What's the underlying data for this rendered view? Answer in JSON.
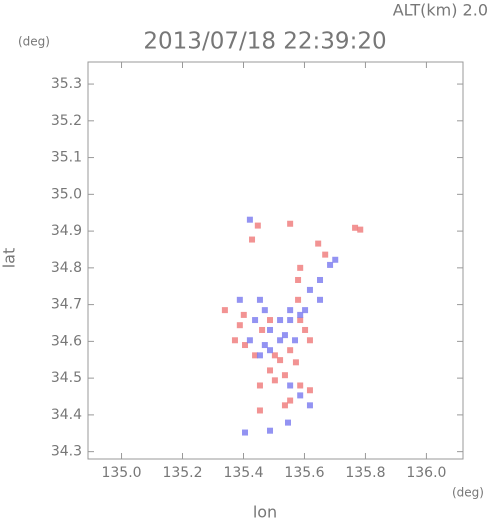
{
  "chart_data": {
    "type": "scatter",
    "title": "2013/07/18 22:39:20",
    "annotation": "ALT(km) 2.0",
    "x_label": "lon",
    "y_label": "lat",
    "x_unit": "(deg)",
    "y_unit": "(deg)",
    "xlim": [
      134.89,
      136.12
    ],
    "ylim": [
      34.28,
      35.36
    ],
    "xticks": [
      {
        "value": 135.0,
        "label": "135.0"
      },
      135.2,
      135.4,
      135.6,
      135.8,
      {
        "value": 136.0,
        "label": "136.0"
      }
    ],
    "yticks": [
      34.3,
      34.4,
      34.5,
      34.6,
      34.7,
      34.8,
      34.9,
      {
        "value": 35.0,
        "label": "35.0"
      },
      35.1,
      35.2,
      35.3
    ],
    "series": [
      {
        "color": "#f08080",
        "x": [
          135.553,
          135.447,
          135.766,
          135.783,
          135.586,
          135.579,
          135.668,
          135.339,
          135.388,
          135.372,
          135.405,
          135.579,
          135.586,
          135.602,
          135.553,
          135.52,
          135.487,
          135.503,
          135.454,
          135.536,
          135.586,
          135.618,
          135.553,
          135.454,
          135.536,
          135.503,
          135.438,
          135.461,
          135.487,
          135.401,
          135.618,
          135.572,
          135.428,
          135.645
        ],
        "y": [
          34.92,
          34.915,
          34.909,
          34.904,
          34.8,
          34.767,
          34.836,
          34.685,
          34.644,
          34.603,
          34.59,
          34.713,
          34.658,
          34.631,
          34.576,
          34.549,
          34.521,
          34.494,
          34.48,
          34.508,
          34.48,
          34.467,
          34.439,
          34.412,
          34.426,
          34.562,
          34.562,
          34.631,
          34.658,
          34.672,
          34.603,
          34.543,
          34.877,
          34.866
        ]
      },
      {
        "color": "#8080f0",
        "x": [
          135.421,
          135.684,
          135.701,
          135.651,
          135.618,
          135.553,
          135.586,
          135.52,
          135.487,
          135.536,
          135.569,
          135.454,
          135.47,
          135.438,
          135.421,
          135.47,
          135.553,
          135.602,
          135.52,
          135.487,
          135.553,
          135.586,
          135.546,
          135.487,
          135.405,
          135.618,
          135.454,
          135.388,
          135.651
        ],
        "y": [
          34.931,
          34.808,
          34.822,
          34.767,
          34.74,
          34.685,
          34.672,
          34.658,
          34.631,
          34.617,
          34.603,
          34.713,
          34.685,
          34.658,
          34.603,
          34.59,
          34.658,
          34.685,
          34.603,
          34.576,
          34.48,
          34.453,
          34.379,
          34.357,
          34.352,
          34.426,
          34.562,
          34.713,
          34.713
        ]
      }
    ]
  }
}
